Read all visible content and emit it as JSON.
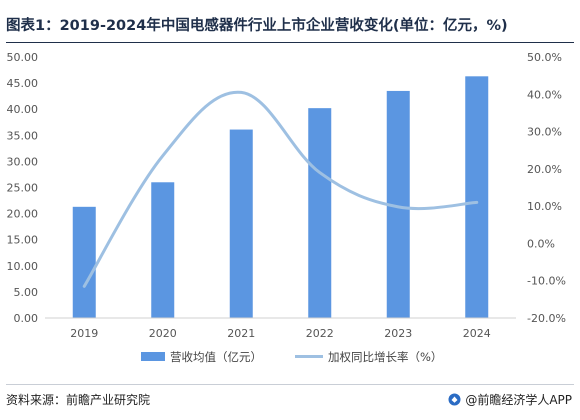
{
  "page": {
    "title": "图表1：2019-2024年中国电感器件行业上市企业营收变化(单位：亿元，%)",
    "source": "资料来源：前瞻产业研究院",
    "brand": "@前瞻经济学人APP",
    "brand_logo_icon": "qianzhan-logo-icon"
  },
  "colors": {
    "bar": "#5b96e1",
    "line": "#9ec0e2",
    "axis_text": "#555555"
  },
  "chart_data": {
    "type": "bar",
    "categories": [
      "2019",
      "2020",
      "2021",
      "2022",
      "2023",
      "2024"
    ],
    "series": [
      {
        "name": "营收均值（亿元）",
        "type": "bar",
        "axis": "left",
        "values": [
          21.3,
          26.0,
          36.1,
          40.2,
          43.5,
          46.3
        ]
      },
      {
        "name": "加权同比增长率（%）",
        "type": "line",
        "axis": "right",
        "values": [
          -11.5,
          23.5,
          40.5,
          19.0,
          9.8,
          11.0
        ]
      }
    ],
    "y_left": {
      "min": 0,
      "max": 50,
      "step": 5,
      "ticks": [
        "0.00",
        "5.00",
        "10.00",
        "15.00",
        "20.00",
        "25.00",
        "30.00",
        "35.00",
        "40.00",
        "45.00",
        "50.00"
      ]
    },
    "y_right": {
      "min": -20,
      "max": 50,
      "step": 10,
      "ticks": [
        "-20.0%",
        "-10.0%",
        "0.0%",
        "10.0%",
        "20.0%",
        "30.0%",
        "40.0%",
        "50.0%"
      ]
    },
    "grid": false,
    "legend_position": "bottom"
  }
}
